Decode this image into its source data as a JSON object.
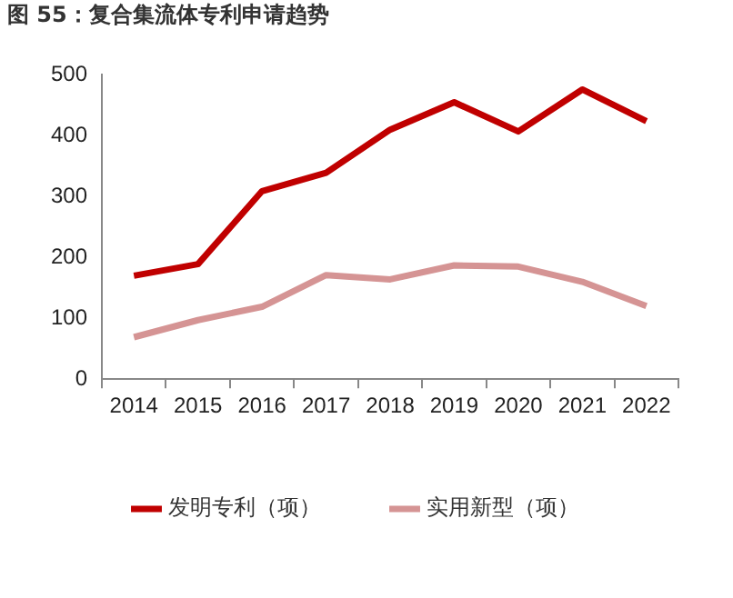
{
  "chart_data": {
    "type": "line",
    "title": "图 55：复合集流体专利申请趋势",
    "categories": [
      "2014",
      "2015",
      "2016",
      "2017",
      "2018",
      "2019",
      "2020",
      "2021",
      "2022"
    ],
    "series": [
      {
        "name": "发明专利（项）",
        "color": "#c00000",
        "values": [
          170,
          189,
          309,
          339,
          410,
          455,
          407,
          476,
          424
        ]
      },
      {
        "name": "实用新型（项）",
        "color": "#d59494",
        "values": [
          69,
          97,
          119,
          171,
          164,
          187,
          185,
          160,
          120
        ]
      }
    ],
    "ylim": [
      0,
      500
    ],
    "yticks": [
      0,
      100,
      200,
      300,
      400,
      500
    ],
    "grid": false,
    "legend": "bottom",
    "marker": "none",
    "line_style": "solid"
  }
}
